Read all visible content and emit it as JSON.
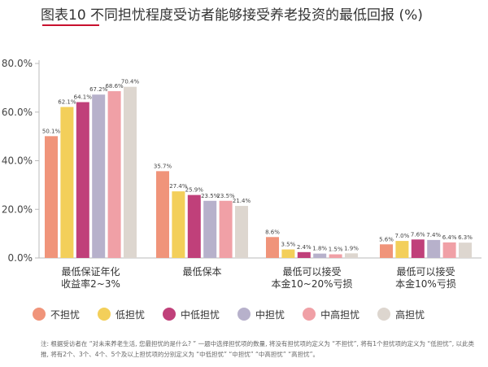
{
  "chart_data": {
    "type": "bar",
    "title": "图表10 不同担忧程度受访者能够接受养老投资的最低回报 (%)",
    "categories": [
      [
        "最低保证年化",
        "收益率2~3%"
      ],
      [
        "最低保本"
      ],
      [
        "最低可以接受",
        "本金10~20%亏损"
      ],
      [
        "最低可以接受",
        "本金10%亏损"
      ]
    ],
    "series": [
      {
        "name": "不担忧",
        "color": "#f0947a",
        "values": [
          50.1,
          35.7,
          8.6,
          5.6
        ],
        "labels": [
          "50.1%",
          "35.7%",
          "8.6%",
          "5.6%"
        ]
      },
      {
        "name": "低担忧",
        "color": "#f3cf5a",
        "values": [
          62.1,
          27.4,
          3.5,
          7.0
        ],
        "labels": [
          "62.1%",
          "27.4%",
          "3.5%",
          "7.0%"
        ]
      },
      {
        "name": "中低担忧",
        "color": "#c0407a",
        "values": [
          64.1,
          25.9,
          2.4,
          7.6
        ],
        "labels": [
          "64.1%",
          "25.9%",
          "2.4%",
          "7.6%"
        ]
      },
      {
        "name": "中担忧",
        "color": "#b7b1cb",
        "values": [
          67.2,
          23.5,
          1.8,
          7.4
        ],
        "labels": [
          "67.2%",
          "23.5%",
          "1.8%",
          "7.4%"
        ]
      },
      {
        "name": "中高担忧",
        "color": "#f0a0a6",
        "values": [
          68.6,
          23.5,
          1.5,
          6.4
        ],
        "labels": [
          "68.6%",
          "23.5%",
          "1.5%",
          "6.4%"
        ]
      },
      {
        "name": "高担忧",
        "color": "#ddd6cf",
        "values": [
          70.4,
          21.4,
          1.9,
          6.3
        ],
        "labels": [
          "70.4%",
          "21.4%",
          "1.9%",
          "6.3%"
        ]
      }
    ],
    "y_ticks": [
      0,
      20,
      40,
      60,
      80
    ],
    "y_tick_labels": [
      "0.0%",
      "20.0%",
      "40.0%",
      "60.0%",
      "80.0%"
    ],
    "ylim": [
      0,
      80
    ],
    "grid": false,
    "legend_position": "bottom"
  },
  "colors": {
    "accent": "#c8102e",
    "axis": "#bbbbbb"
  },
  "footnote": "注: 根据受访者在 “对未来养老生活, 您最担忧的是什么? ” 一题中选择担忧项的数量, 将没有担忧项的定义为 “不担忧”, 将有1个担忧项的定义为 “低担忧”, 以此类推, 将有2个、3个、4个、5个及以上担忧项的分别定义为 “中低担忧” “中担忧” “中高担忧” “高担忧”。"
}
